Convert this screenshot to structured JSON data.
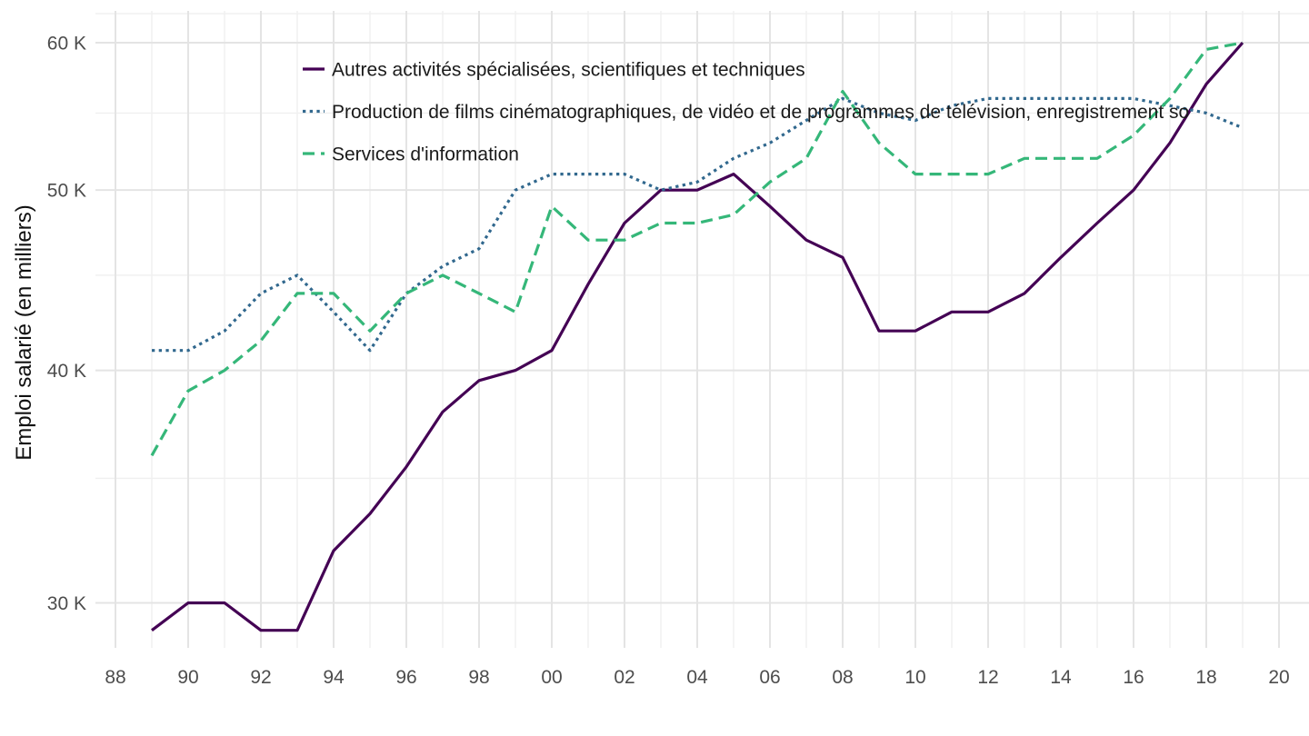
{
  "chart_data": {
    "type": "line",
    "title": "",
    "xlabel": "",
    "ylabel": "Emploi salarié (en milliers)",
    "y_unit": "K",
    "y_scale": "log",
    "ylim": [
      28.4,
      62
    ],
    "xlim": [
      1987.5,
      2020.8
    ],
    "grid": true,
    "legend_position": "top-left-inside",
    "x": [
      1989,
      1990,
      1991,
      1992,
      1993,
      1994,
      1995,
      1996,
      1997,
      1998,
      1999,
      2000,
      2001,
      2002,
      2003,
      2004,
      2005,
      2006,
      2007,
      2008,
      2009,
      2010,
      2011,
      2012,
      2013,
      2014,
      2015,
      2016,
      2017,
      2018,
      2019
    ],
    "series": [
      {
        "name": "Autres activités spécialisées, scientifiques et techniques",
        "color": "#440154",
        "linestyle": "solid",
        "values": [
          29,
          30,
          30,
          29,
          29,
          32,
          33.5,
          35.5,
          38,
          39.5,
          40,
          41,
          44.5,
          48,
          50,
          50,
          51,
          49,
          47,
          46,
          42,
          42,
          43,
          43,
          44,
          46,
          48,
          50,
          53,
          57,
          60
        ]
      },
      {
        "name": "Production de films cinématographiques, de vidéo et de programmes de télévision, enregistrement so",
        "color": "#31688E",
        "linestyle": "dotted",
        "values": [
          41,
          41,
          42,
          44,
          45,
          43,
          41,
          44,
          45.5,
          46.5,
          50,
          51,
          51,
          51,
          50,
          50.5,
          52,
          53,
          54.5,
          56,
          55,
          54.5,
          55.5,
          56,
          56,
          56,
          56,
          56,
          55.5,
          55,
          54
        ]
      },
      {
        "name": "Services d'information",
        "color": "#35B779",
        "linestyle": "dashed",
        "values": [
          36,
          39,
          40,
          41.5,
          44,
          44,
          42,
          44,
          45,
          44,
          43,
          49,
          47,
          47,
          48,
          48,
          48.5,
          50.5,
          52,
          56.5,
          53,
          51,
          51,
          51,
          52,
          52,
          52,
          53.5,
          56,
          59.5,
          60
        ]
      }
    ],
    "y_major_ticks": [
      60,
      50,
      40,
      30
    ],
    "y_tick_labels": [
      "60 K",
      "50 K",
      "40 K",
      "30 K"
    ],
    "y_minor_ticks": [
      55,
      45,
      35
    ],
    "x_major_ticks": [
      1988,
      1990,
      1992,
      1994,
      1996,
      1998,
      2000,
      2002,
      2004,
      2006,
      2008,
      2010,
      2012,
      2014,
      2016,
      2018,
      2020
    ],
    "x_tick_labels": [
      "88",
      "90",
      "92",
      "94",
      "96",
      "98",
      "00",
      "02",
      "04",
      "06",
      "08",
      "10",
      "12",
      "14",
      "16",
      "18",
      "20"
    ],
    "x_minor_ticks": [
      1989,
      1991,
      1993,
      1995,
      1997,
      1999,
      2001,
      2003,
      2005,
      2007,
      2009,
      2011,
      2013,
      2015,
      2017,
      2019
    ]
  },
  "style": {
    "grid_major_color": "#E4E4E4",
    "grid_minor_color": "#F0F0F0",
    "tick_label_color": "#4D4D4D",
    "text_color": "#1A1A1A",
    "background_color": "#FFFFFF"
  }
}
